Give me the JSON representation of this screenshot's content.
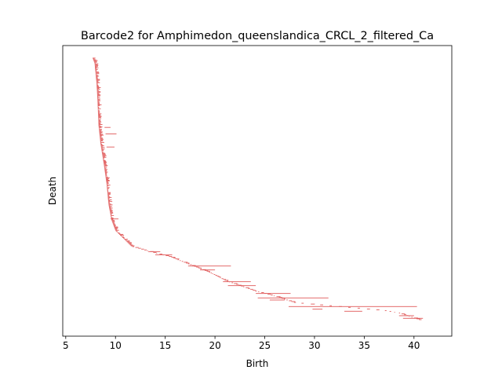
{
  "chart_data": {
    "type": "barcode",
    "title": "Barcode2 for Amphimedon_queenslandica_CRCL_2_filtered_Ca",
    "xlabel": "Birth",
    "ylabel": "Death",
    "xlim": [
      4.7,
      43.8
    ],
    "x_ticks": [
      5,
      10,
      15,
      20,
      25,
      30,
      35,
      40
    ],
    "y_ticks": [],
    "grid": false,
    "legend": "none",
    "bar_color": "#e05a5a",
    "axis_color": "#000000",
    "series": [
      {
        "anchors": [
          [
            7.7,
            0.0
          ],
          [
            7.9,
            0.02
          ],
          [
            8.0,
            0.06
          ],
          [
            8.1,
            0.1
          ],
          [
            8.2,
            0.17
          ],
          [
            8.3,
            0.26
          ],
          [
            8.5,
            0.33
          ],
          [
            8.8,
            0.4
          ],
          [
            9.1,
            0.48
          ],
          [
            9.3,
            0.56
          ],
          [
            9.6,
            0.62
          ],
          [
            10.0,
            0.66
          ],
          [
            10.8,
            0.69
          ],
          [
            11.6,
            0.72
          ],
          [
            13.5,
            0.74
          ],
          [
            15.5,
            0.76
          ],
          [
            17.5,
            0.79
          ],
          [
            19.5,
            0.82
          ],
          [
            21.0,
            0.85
          ],
          [
            22.5,
            0.87
          ],
          [
            24.0,
            0.89
          ],
          [
            26.0,
            0.91
          ],
          [
            28.0,
            0.935
          ],
          [
            31.0,
            0.945
          ],
          [
            34.0,
            0.955
          ],
          [
            37.0,
            0.965
          ],
          [
            38.5,
            0.975
          ],
          [
            40.5,
            1.0
          ]
        ],
        "count": 320,
        "long_bars": [
          {
            "birth": 8.9,
            "death": 9.5,
            "y": 0.265
          },
          {
            "birth": 9.0,
            "death": 10.1,
            "y": 0.29
          },
          {
            "birth": 9.1,
            "death": 9.9,
            "y": 0.34
          },
          {
            "birth": 9.5,
            "death": 10.3,
            "y": 0.615
          },
          {
            "birth": 13.3,
            "death": 14.5,
            "y": 0.74
          },
          {
            "birth": 14.0,
            "death": 15.7,
            "y": 0.752
          },
          {
            "birth": 17.3,
            "death": 21.6,
            "y": 0.795
          },
          {
            "birth": 18.5,
            "death": 20.0,
            "y": 0.81
          },
          {
            "birth": 20.8,
            "death": 23.6,
            "y": 0.855
          },
          {
            "birth": 21.3,
            "death": 24.1,
            "y": 0.87
          },
          {
            "birth": 24.1,
            "death": 27.6,
            "y": 0.9
          },
          {
            "birth": 24.3,
            "death": 31.4,
            "y": 0.917
          },
          {
            "birth": 25.5,
            "death": 27.0,
            "y": 0.925
          },
          {
            "birth": 27.4,
            "death": 40.3,
            "y": 0.95
          },
          {
            "birth": 29.8,
            "death": 30.8,
            "y": 0.96
          },
          {
            "birth": 33.0,
            "death": 34.8,
            "y": 0.968
          },
          {
            "birth": 38.5,
            "death": 40.0,
            "y": 0.985
          },
          {
            "birth": 38.9,
            "death": 40.9,
            "y": 0.995
          }
        ]
      }
    ]
  }
}
